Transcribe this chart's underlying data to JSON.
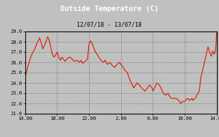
{
  "title": "Outside Temperature (C)",
  "subtitle": "12/07/18 - 13/07/18",
  "background_color": "#c0c0c0",
  "plot_bg_color": "#c0c0c0",
  "title_bar_color": "#000000",
  "line_color": "#dd2200",
  "title_color": "white",
  "subtitle_color": "black",
  "grid_color": "#666666",
  "ylim": [
    21.0,
    29.0
  ],
  "yticks": [
    21.0,
    22.0,
    23.0,
    24.0,
    25.0,
    26.0,
    27.0,
    28.0,
    29.0
  ],
  "xtick_labels": [
    "14.00",
    "18.00",
    "22.00",
    "2.00",
    "6.00",
    "10.00",
    "14.00"
  ],
  "x_values": [
    0,
    4,
    8,
    12,
    16,
    20,
    24
  ],
  "time_series": [
    [
      0.0,
      24.5
    ],
    [
      0.3,
      25.5
    ],
    [
      0.6,
      26.3
    ],
    [
      0.9,
      26.9
    ],
    [
      1.2,
      27.3
    ],
    [
      1.5,
      27.9
    ],
    [
      1.8,
      28.4
    ],
    [
      2.0,
      27.9
    ],
    [
      2.2,
      27.3
    ],
    [
      2.5,
      27.8
    ],
    [
      2.8,
      28.5
    ],
    [
      3.0,
      28.2
    ],
    [
      3.2,
      27.5
    ],
    [
      3.4,
      26.8
    ],
    [
      3.6,
      26.5
    ],
    [
      3.8,
      26.7
    ],
    [
      4.0,
      27.0
    ],
    [
      4.2,
      26.5
    ],
    [
      4.4,
      26.2
    ],
    [
      4.6,
      26.5
    ],
    [
      4.8,
      26.3
    ],
    [
      5.0,
      26.1
    ],
    [
      5.2,
      26.3
    ],
    [
      5.5,
      26.5
    ],
    [
      5.8,
      26.4
    ],
    [
      6.0,
      26.2
    ],
    [
      6.2,
      26.1
    ],
    [
      6.5,
      26.2
    ],
    [
      6.8,
      26.0
    ],
    [
      7.0,
      26.2
    ],
    [
      7.2,
      25.9
    ],
    [
      7.5,
      26.1
    ],
    [
      7.8,
      26.3
    ],
    [
      8.0,
      27.8
    ],
    [
      8.2,
      28.1
    ],
    [
      8.4,
      27.8
    ],
    [
      8.6,
      27.4
    ],
    [
      8.8,
      27.0
    ],
    [
      9.0,
      26.8
    ],
    [
      9.2,
      26.5
    ],
    [
      9.5,
      26.2
    ],
    [
      9.8,
      26.0
    ],
    [
      10.0,
      26.2
    ],
    [
      10.3,
      25.8
    ],
    [
      10.6,
      26.0
    ],
    [
      10.9,
      25.7
    ],
    [
      11.2,
      25.5
    ],
    [
      11.5,
      25.8
    ],
    [
      11.8,
      26.0
    ],
    [
      12.0,
      25.8
    ],
    [
      12.3,
      25.5
    ],
    [
      12.5,
      25.2
    ],
    [
      12.8,
      25.0
    ],
    [
      13.0,
      24.5
    ],
    [
      13.3,
      24.0
    ],
    [
      13.6,
      23.5
    ],
    [
      14.0,
      24.0
    ],
    [
      14.3,
      23.8
    ],
    [
      14.6,
      23.5
    ],
    [
      15.0,
      23.2
    ],
    [
      15.3,
      23.5
    ],
    [
      15.6,
      23.8
    ],
    [
      15.9,
      23.5
    ],
    [
      16.0,
      23.2
    ],
    [
      16.2,
      23.5
    ],
    [
      16.5,
      24.0
    ],
    [
      16.8,
      23.8
    ],
    [
      17.0,
      23.5
    ],
    [
      17.3,
      23.0
    ],
    [
      17.6,
      22.8
    ],
    [
      17.9,
      23.0
    ],
    [
      18.0,
      22.8
    ],
    [
      18.3,
      22.5
    ],
    [
      18.6,
      22.5
    ],
    [
      18.9,
      22.5
    ],
    [
      19.2,
      22.3
    ],
    [
      19.5,
      22.0
    ],
    [
      19.7,
      22.2
    ],
    [
      20.0,
      22.2
    ],
    [
      20.3,
      22.5
    ],
    [
      20.6,
      22.3
    ],
    [
      20.9,
      22.5
    ],
    [
      21.0,
      22.3
    ],
    [
      21.3,
      22.5
    ],
    [
      21.5,
      22.8
    ],
    [
      21.8,
      23.2
    ],
    [
      22.0,
      24.5
    ],
    [
      22.3,
      25.5
    ],
    [
      22.6,
      26.5
    ],
    [
      22.9,
      27.5
    ],
    [
      23.1,
      27.0
    ],
    [
      23.3,
      26.6
    ],
    [
      23.5,
      27.1
    ],
    [
      23.7,
      26.8
    ],
    [
      23.85,
      27.2
    ],
    [
      24.0,
      29.0
    ]
  ]
}
